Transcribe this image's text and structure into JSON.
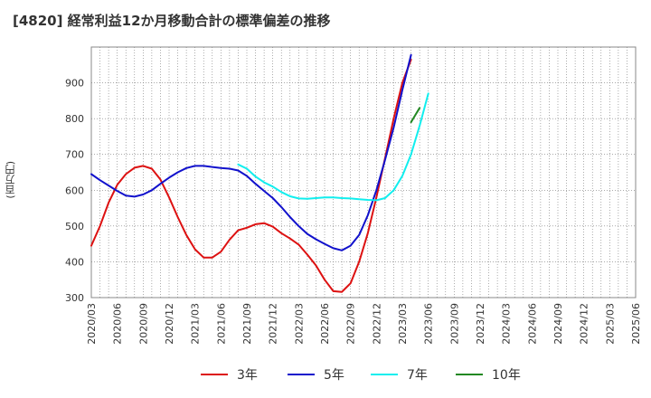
{
  "chart_data": {
    "type": "line",
    "title": "[4820]  経常利益12か月移動合計の標準偏差の推移",
    "ylabel": "(百万円)",
    "xlabel": "",
    "ylim": [
      300,
      1000
    ],
    "yticks": [
      300,
      400,
      500,
      600,
      700,
      800,
      900
    ],
    "xticks": [
      "2020/03",
      "2020/06",
      "2020/09",
      "2020/12",
      "2021/03",
      "2021/06",
      "2021/09",
      "2021/12",
      "2022/03",
      "2022/06",
      "2022/09",
      "2022/12",
      "2023/03",
      "2023/06",
      "2023/09",
      "2023/12",
      "2024/03",
      "2024/06",
      "2024/09",
      "2024/12",
      "2025/03",
      "2025/06"
    ],
    "grid": true,
    "legend_position": "bottom",
    "series": [
      {
        "name": "3年",
        "color": "#dd1111",
        "values": [
          [
            0,
            445
          ],
          [
            1,
            500
          ],
          [
            2,
            565
          ],
          [
            3,
            615
          ],
          [
            4,
            645
          ],
          [
            5,
            663
          ],
          [
            6,
            668
          ],
          [
            7,
            660
          ],
          [
            8,
            630
          ],
          [
            9,
            580
          ],
          [
            10,
            525
          ],
          [
            11,
            475
          ],
          [
            12,
            435
          ],
          [
            13,
            412
          ],
          [
            14,
            412
          ],
          [
            15,
            428
          ],
          [
            16,
            462
          ],
          [
            17,
            488
          ],
          [
            18,
            495
          ],
          [
            19,
            505
          ],
          [
            20,
            508
          ],
          [
            21,
            498
          ],
          [
            22,
            480
          ],
          [
            23,
            465
          ],
          [
            24,
            448
          ],
          [
            25,
            420
          ],
          [
            26,
            390
          ],
          [
            27,
            350
          ],
          [
            28,
            318
          ],
          [
            29,
            316
          ],
          [
            30,
            340
          ],
          [
            31,
            400
          ],
          [
            32,
            480
          ],
          [
            33,
            580
          ],
          [
            34,
            690
          ],
          [
            35,
            800
          ],
          [
            36,
            900
          ],
          [
            37,
            965
          ]
        ]
      },
      {
        "name": "5年",
        "color": "#1111cc",
        "values": [
          [
            0,
            645
          ],
          [
            1,
            628
          ],
          [
            2,
            613
          ],
          [
            3,
            598
          ],
          [
            4,
            585
          ],
          [
            5,
            582
          ],
          [
            6,
            588
          ],
          [
            7,
            600
          ],
          [
            8,
            618
          ],
          [
            9,
            635
          ],
          [
            10,
            650
          ],
          [
            11,
            662
          ],
          [
            12,
            668
          ],
          [
            13,
            668
          ],
          [
            14,
            665
          ],
          [
            15,
            662
          ],
          [
            16,
            660
          ],
          [
            17,
            655
          ],
          [
            18,
            640
          ],
          [
            19,
            618
          ],
          [
            20,
            598
          ],
          [
            21,
            578
          ],
          [
            22,
            553
          ],
          [
            23,
            525
          ],
          [
            24,
            500
          ],
          [
            25,
            478
          ],
          [
            26,
            463
          ],
          [
            27,
            450
          ],
          [
            28,
            438
          ],
          [
            29,
            432
          ],
          [
            30,
            445
          ],
          [
            31,
            475
          ],
          [
            32,
            530
          ],
          [
            33,
            600
          ],
          [
            34,
            685
          ],
          [
            35,
            775
          ],
          [
            36,
            880
          ],
          [
            37,
            978
          ]
        ]
      },
      {
        "name": "7年",
        "color": "#11eeee",
        "values": [
          [
            17,
            672
          ],
          [
            18,
            660
          ],
          [
            19,
            638
          ],
          [
            20,
            622
          ],
          [
            21,
            610
          ],
          [
            22,
            595
          ],
          [
            23,
            583
          ],
          [
            24,
            577
          ],
          [
            25,
            576
          ],
          [
            26,
            578
          ],
          [
            27,
            580
          ],
          [
            28,
            580
          ],
          [
            29,
            578
          ],
          [
            30,
            577
          ],
          [
            31,
            575
          ],
          [
            32,
            573
          ],
          [
            33,
            572
          ],
          [
            34,
            578
          ],
          [
            35,
            600
          ],
          [
            36,
            640
          ],
          [
            37,
            700
          ],
          [
            38,
            780
          ],
          [
            39,
            870
          ]
        ]
      },
      {
        "name": "10年",
        "color": "#228822",
        "values": [
          [
            37,
            790
          ],
          [
            38,
            830
          ]
        ]
      }
    ]
  }
}
